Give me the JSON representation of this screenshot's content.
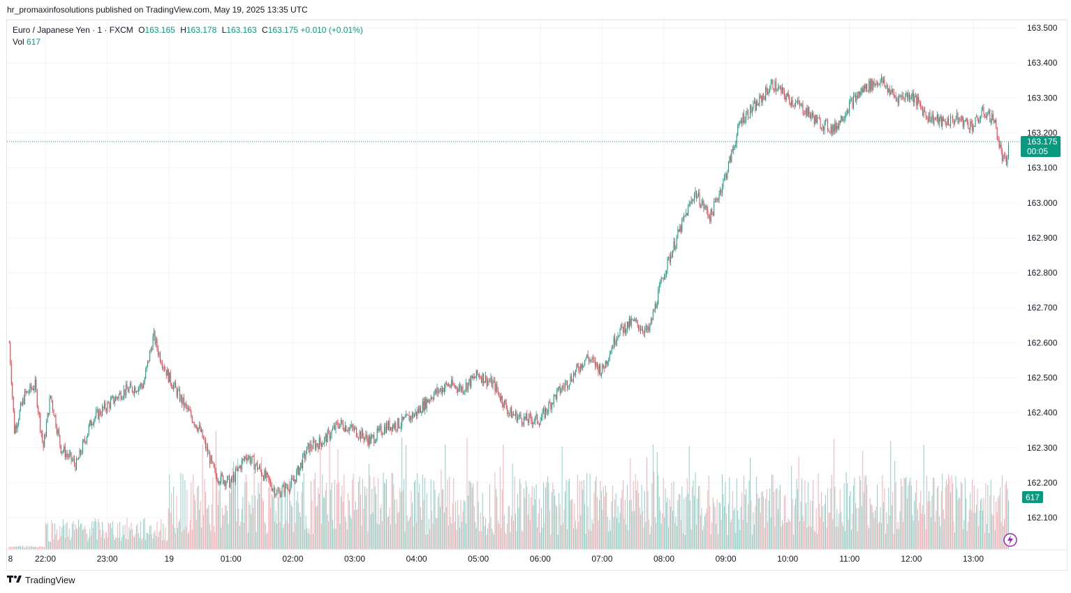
{
  "header": {
    "published_text": "hr_promaxinfosolutions published on TradingView.com, May 19, 2025 13:35 UTC"
  },
  "legend": {
    "symbol": "Euro / Japanese Yen · 1 · FXCM",
    "open_label": "O",
    "open": "163.165",
    "high_label": "H",
    "high": "163.178",
    "low_label": "L",
    "low": "163.163",
    "close_label": "C",
    "close": "163.175",
    "change": "+0.010 (+0.01%)",
    "vol_label": "Vol",
    "vol": "617"
  },
  "price_tag": {
    "price": "163.175",
    "countdown": "00:05"
  },
  "volume_tag": "617",
  "footer": {
    "brand": "TradingView",
    "brand_icon": "tradingview-logo-icon"
  },
  "colors": {
    "up": "#089981",
    "down": "#f23645",
    "up_vol": "#7fcdc1",
    "down_vol": "#f7a5ab"
  },
  "chart_data": {
    "type": "candlestick",
    "y_axis": {
      "min": 162.0,
      "max": 163.55,
      "ticks": [
        "163.500",
        "163.400",
        "163.300",
        "163.200",
        "163.100",
        "163.000",
        "162.900",
        "162.800",
        "162.700",
        "162.600",
        "162.500",
        "162.400",
        "162.300",
        "162.200",
        "162.100"
      ]
    },
    "x_ticks": [
      "8",
      "22:00",
      "23:00",
      "19",
      "01:00",
      "02:00",
      "03:00",
      "04:00",
      "05:00",
      "06:00",
      "07:00",
      "08:00",
      "09:00",
      "10:00",
      "11:00",
      "12:00",
      "13:00"
    ],
    "last_price": 163.175,
    "price_path": [
      [
        "21:25",
        162.6
      ],
      [
        "21:30",
        162.35
      ],
      [
        "21:40",
        162.45
      ],
      [
        "21:50",
        162.48
      ],
      [
        "21:58",
        162.3
      ],
      [
        "22:05",
        162.45
      ],
      [
        "22:15",
        162.3
      ],
      [
        "22:30",
        162.25
      ],
      [
        "22:45",
        162.38
      ],
      [
        "23:00",
        162.42
      ],
      [
        "23:15",
        162.46
      ],
      [
        "23:35",
        162.48
      ],
      [
        "23:45",
        162.62
      ],
      [
        "23:50",
        162.57
      ],
      [
        "00:00",
        162.5
      ],
      [
        "00:15",
        162.42
      ],
      [
        "00:30",
        162.35
      ],
      [
        "00:45",
        162.22
      ],
      [
        "01:00",
        162.2
      ],
      [
        "01:15",
        162.28
      ],
      [
        "01:30",
        162.23
      ],
      [
        "01:45",
        162.17
      ],
      [
        "02:00",
        162.2
      ],
      [
        "02:15",
        162.3
      ],
      [
        "02:30",
        162.32
      ],
      [
        "02:45",
        162.37
      ],
      [
        "03:00",
        162.35
      ],
      [
        "03:15",
        162.32
      ],
      [
        "03:30",
        162.36
      ],
      [
        "03:45",
        162.37
      ],
      [
        "04:00",
        162.4
      ],
      [
        "04:15",
        162.45
      ],
      [
        "04:30",
        162.48
      ],
      [
        "04:45",
        162.47
      ],
      [
        "05:00",
        162.51
      ],
      [
        "05:15",
        162.48
      ],
      [
        "05:30",
        162.4
      ],
      [
        "05:45",
        162.38
      ],
      [
        "06:00",
        162.38
      ],
      [
        "06:15",
        162.45
      ],
      [
        "06:30",
        162.5
      ],
      [
        "06:45",
        162.56
      ],
      [
        "07:00",
        162.52
      ],
      [
        "07:15",
        162.63
      ],
      [
        "07:30",
        162.66
      ],
      [
        "07:45",
        162.63
      ],
      [
        "08:00",
        162.8
      ],
      [
        "08:15",
        162.92
      ],
      [
        "08:30",
        163.03
      ],
      [
        "08:45",
        162.96
      ],
      [
        "09:00",
        163.08
      ],
      [
        "09:15",
        163.24
      ],
      [
        "09:30",
        163.28
      ],
      [
        "09:45",
        163.34
      ],
      [
        "10:00",
        163.3
      ],
      [
        "10:15",
        163.27
      ],
      [
        "10:30",
        163.23
      ],
      [
        "10:45",
        163.21
      ],
      [
        "11:00",
        163.28
      ],
      [
        "11:15",
        163.33
      ],
      [
        "11:30",
        163.35
      ],
      [
        "11:45",
        163.3
      ],
      [
        "12:00",
        163.31
      ],
      [
        "12:15",
        163.25
      ],
      [
        "12:30",
        163.23
      ],
      [
        "12:45",
        163.24
      ],
      [
        "13:00",
        163.22
      ],
      [
        "13:10",
        163.26
      ],
      [
        "13:20",
        163.24
      ],
      [
        "13:28",
        163.13
      ],
      [
        "13:32",
        163.11
      ],
      [
        "13:35",
        163.175
      ]
    ]
  }
}
